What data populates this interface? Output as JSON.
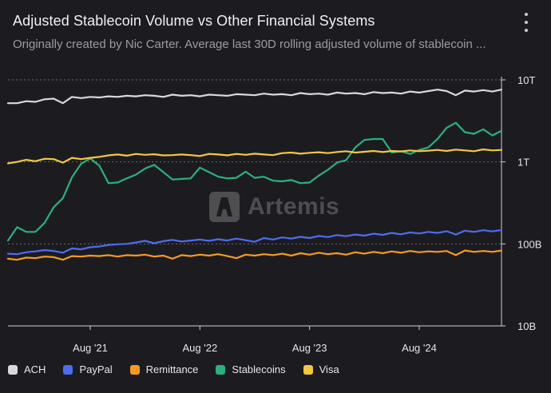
{
  "title": "Adjusted Stablecoin Volume vs Other Financial Systems",
  "subtitle": "Originally created by Nic Carter. Average last 30D rolling adjusted volume of stablecoin ...",
  "watermark": "Artemis",
  "colors": {
    "ACH": "#d9d9dc",
    "PayPal": "#4f6cf0",
    "Remittance": "#f59a23",
    "Stablecoins": "#2bb07f",
    "Visa": "#f2c744",
    "background": "#1c1c20",
    "grid": "#6b6b73"
  },
  "chart_data": {
    "type": "line",
    "yscale": "log",
    "y_ticks": [
      {
        "value": 10000000000,
        "label": "10B"
      },
      {
        "value": 100000000000,
        "label": "100B"
      },
      {
        "value": 1000000000000,
        "label": "1T"
      },
      {
        "value": 10000000000000,
        "label": "10T"
      }
    ],
    "ylim": [
      10000000000,
      10000000000000
    ],
    "x_start": "2020-11",
    "x_end": "2025-05",
    "x_ticks": [
      {
        "value": "2021-08",
        "label": "Aug '21"
      },
      {
        "value": "2022-08",
        "label": "Aug '22"
      },
      {
        "value": "2023-08",
        "label": "Aug '23"
      },
      {
        "value": "2024-08",
        "label": "Aug '24"
      }
    ],
    "grid": true,
    "legend_position": "bottom",
    "x": [
      "2020-11",
      "2020-12",
      "2021-01",
      "2021-02",
      "2021-03",
      "2021-04",
      "2021-05",
      "2021-06",
      "2021-07",
      "2021-08",
      "2021-09",
      "2021-10",
      "2021-11",
      "2021-12",
      "2022-01",
      "2022-02",
      "2022-03",
      "2022-04",
      "2022-05",
      "2022-06",
      "2022-07",
      "2022-08",
      "2022-09",
      "2022-10",
      "2022-11",
      "2022-12",
      "2023-01",
      "2023-02",
      "2023-03",
      "2023-04",
      "2023-05",
      "2023-06",
      "2023-07",
      "2023-08",
      "2023-09",
      "2023-10",
      "2023-11",
      "2023-12",
      "2024-01",
      "2024-02",
      "2024-03",
      "2024-04",
      "2024-05",
      "2024-06",
      "2024-07",
      "2024-08",
      "2024-09",
      "2024-10",
      "2024-11",
      "2024-12",
      "2025-01",
      "2025-02",
      "2025-03",
      "2025-04",
      "2025-05"
    ],
    "series": [
      {
        "name": "ACH",
        "values": [
          5200000000000.0,
          5200000000000.0,
          5500000000000.0,
          5400000000000.0,
          5800000000000.0,
          5900000000000.0,
          5200000000000.0,
          6200000000000.0,
          6000000000000.0,
          6200000000000.0,
          6100000000000.0,
          6300000000000.0,
          6200000000000.0,
          6400000000000.0,
          6300000000000.0,
          6500000000000.0,
          6400000000000.0,
          6200000000000.0,
          6600000000000.0,
          6400000000000.0,
          6500000000000.0,
          6300000000000.0,
          6600000000000.0,
          6500000000000.0,
          6400000000000.0,
          6700000000000.0,
          6600000000000.0,
          6500000000000.0,
          6800000000000.0,
          6600000000000.0,
          6700000000000.0,
          6500000000000.0,
          6900000000000.0,
          6700000000000.0,
          6800000000000.0,
          6600000000000.0,
          7000000000000.0,
          6800000000000.0,
          6900000000000.0,
          6700000000000.0,
          7100000000000.0,
          6900000000000.0,
          7000000000000.0,
          6800000000000.0,
          7200000000000.0,
          7000000000000.0,
          7300000000000.0,
          7600000000000.0,
          7300000000000.0,
          6500000000000.0,
          7400000000000.0,
          7200000000000.0,
          7500000000000.0,
          7200000000000.0,
          7600000000000.0
        ]
      },
      {
        "name": "PayPal",
        "values": [
          76000000000.0,
          75000000000.0,
          79000000000.0,
          81000000000.0,
          84000000000.0,
          82000000000.0,
          78000000000.0,
          88000000000.0,
          86000000000.0,
          91000000000.0,
          93000000000.0,
          97000000000.0,
          99000000000.0,
          100000000000.0,
          104000000000.0,
          109000000000.0,
          102000000000.0,
          108000000000.0,
          112000000000.0,
          107000000000.0,
          110000000000.0,
          113000000000.0,
          109000000000.0,
          114000000000.0,
          110000000000.0,
          116000000000.0,
          111000000000.0,
          106000000000.0,
          118000000000.0,
          113000000000.0,
          120000000000.0,
          116000000000.0,
          122000000000.0,
          118000000000.0,
          125000000000.0,
          121000000000.0,
          128000000000.0,
          124000000000.0,
          130000000000.0,
          126000000000.0,
          133000000000.0,
          129000000000.0,
          136000000000.0,
          131000000000.0,
          138000000000.0,
          134000000000.0,
          140000000000.0,
          136000000000.0,
          143000000000.0,
          130000000000.0,
          145000000000.0,
          140000000000.0,
          147000000000.0,
          142000000000.0,
          148000000000.0
        ]
      },
      {
        "name": "Remittance",
        "values": [
          66000000000.0,
          64000000000.0,
          68000000000.0,
          67000000000.0,
          70000000000.0,
          69000000000.0,
          64000000000.0,
          71000000000.0,
          70000000000.0,
          72000000000.0,
          71000000000.0,
          73000000000.0,
          70000000000.0,
          73000000000.0,
          72000000000.0,
          74000000000.0,
          70000000000.0,
          72000000000.0,
          66000000000.0,
          73000000000.0,
          71000000000.0,
          74000000000.0,
          72000000000.0,
          75000000000.0,
          71000000000.0,
          67000000000.0,
          74000000000.0,
          72000000000.0,
          75000000000.0,
          73000000000.0,
          76000000000.0,
          72000000000.0,
          77000000000.0,
          74000000000.0,
          78000000000.0,
          75000000000.0,
          77000000000.0,
          74000000000.0,
          79000000000.0,
          76000000000.0,
          80000000000.0,
          77000000000.0,
          81000000000.0,
          78000000000.0,
          82000000000.0,
          79000000000.0,
          81000000000.0,
          80000000000.0,
          82000000000.0,
          73000000000.0,
          83000000000.0,
          80000000000.0,
          82000000000.0,
          80000000000.0,
          83000000000.0
        ]
      },
      {
        "name": "Stablecoins",
        "values": [
          110000000000.0,
          160000000000.0,
          140000000000.0,
          140000000000.0,
          180000000000.0,
          280000000000.0,
          360000000000.0,
          650000000000.0,
          950000000000.0,
          1100000000000.0,
          900000000000.0,
          550000000000.0,
          560000000000.0,
          630000000000.0,
          700000000000.0,
          830000000000.0,
          920000000000.0,
          750000000000.0,
          610000000000.0,
          620000000000.0,
          630000000000.0,
          850000000000.0,
          750000000000.0,
          660000000000.0,
          630000000000.0,
          640000000000.0,
          760000000000.0,
          640000000000.0,
          660000000000.0,
          590000000000.0,
          580000000000.0,
          600000000000.0,
          550000000000.0,
          560000000000.0,
          680000000000.0,
          800000000000.0,
          980000000000.0,
          1050000000000.0,
          1500000000000.0,
          1850000000000.0,
          1900000000000.0,
          1900000000000.0,
          1300000000000.0,
          1350000000000.0,
          1250000000000.0,
          1400000000000.0,
          1500000000000.0,
          1900000000000.0,
          2600000000000.0,
          3000000000000.0,
          2300000000000.0,
          2200000000000.0,
          2500000000000.0,
          2100000000000.0,
          2400000000000.0
        ]
      },
      {
        "name": "Visa",
        "values": [
          960000000000.0,
          1000000000000.0,
          1060000000000.0,
          1020000000000.0,
          1090000000000.0,
          1080000000000.0,
          980000000000.0,
          1120000000000.0,
          1080000000000.0,
          1120000000000.0,
          1150000000000.0,
          1200000000000.0,
          1230000000000.0,
          1190000000000.0,
          1250000000000.0,
          1220000000000.0,
          1240000000000.0,
          1200000000000.0,
          1210000000000.0,
          1230000000000.0,
          1210000000000.0,
          1180000000000.0,
          1250000000000.0,
          1230000000000.0,
          1200000000000.0,
          1250000000000.0,
          1220000000000.0,
          1260000000000.0,
          1230000000000.0,
          1210000000000.0,
          1280000000000.0,
          1300000000000.0,
          1260000000000.0,
          1290000000000.0,
          1310000000000.0,
          1280000000000.0,
          1320000000000.0,
          1350000000000.0,
          1300000000000.0,
          1330000000000.0,
          1360000000000.0,
          1320000000000.0,
          1360000000000.0,
          1340000000000.0,
          1380000000000.0,
          1350000000000.0,
          1370000000000.0,
          1400000000000.0,
          1360000000000.0,
          1410000000000.0,
          1380000000000.0,
          1350000000000.0,
          1420000000000.0,
          1380000000000.0,
          1400000000000.0
        ]
      }
    ]
  }
}
